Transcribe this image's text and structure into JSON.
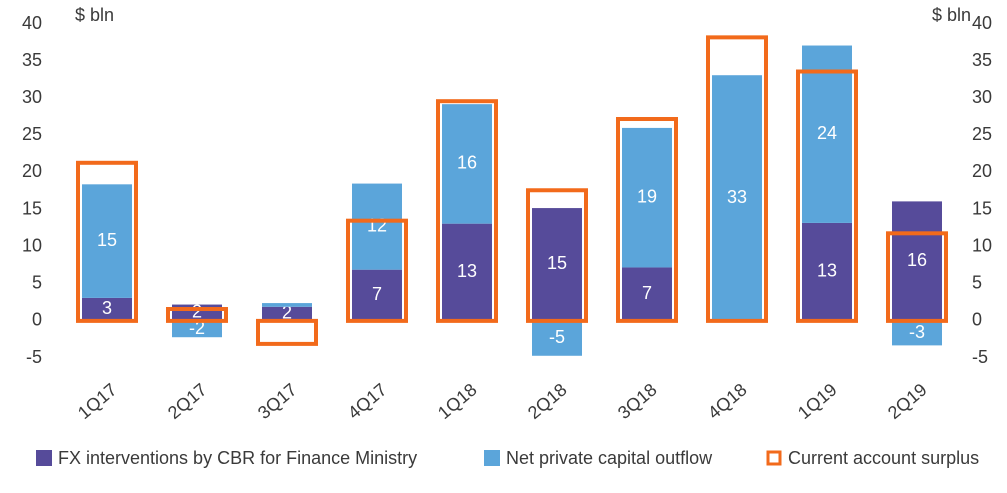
{
  "chart_data": {
    "type": "stacked-bar",
    "y_label": "$ bln",
    "y2_label": "$ bln",
    "categories": [
      "1Q17",
      "2Q17",
      "3Q17",
      "4Q17",
      "1Q18",
      "2Q18",
      "3Q18",
      "4Q18",
      "1Q19",
      "2Q19"
    ],
    "series": [
      {
        "name": "FX interventions by CBR for Finance Ministry",
        "color": "#564b9a",
        "values": [
          3.1,
          2.2,
          1.9,
          6.9,
          13.1,
          15.2,
          7.2,
          0,
          13.2,
          16.1
        ],
        "value_labels": [
          "3",
          "2",
          "2",
          "7",
          "13",
          "15",
          "7",
          null,
          "13",
          "16"
        ]
      },
      {
        "name": "Net private capital outflow",
        "color": "#5ba5da",
        "values": [
          15.3,
          -2.2,
          0.5,
          11.6,
          16.1,
          -4.7,
          18.8,
          33.1,
          23.9,
          -3.3
        ],
        "value_labels": [
          "15",
          "-2",
          null,
          "12",
          "16",
          "-5",
          "19",
          "33",
          "24",
          "-3"
        ]
      },
      {
        "name": "Current account surplus",
        "color": "#f26a1b",
        "style": "outline",
        "values": [
          21.3,
          1.6,
          -3.1,
          13.5,
          29.6,
          17.6,
          27.2,
          38.2,
          33.6,
          11.8
        ]
      }
    ],
    "ylim": [
      -5,
      40
    ],
    "yticks": [
      -5,
      0,
      5,
      10,
      15,
      20,
      25,
      30,
      35,
      40
    ],
    "y2lim": [
      -5,
      40
    ],
    "y2ticks": [
      -5,
      0,
      5,
      10,
      15,
      20,
      25,
      30,
      35,
      40
    ],
    "grid": false,
    "legend": "bottom"
  }
}
